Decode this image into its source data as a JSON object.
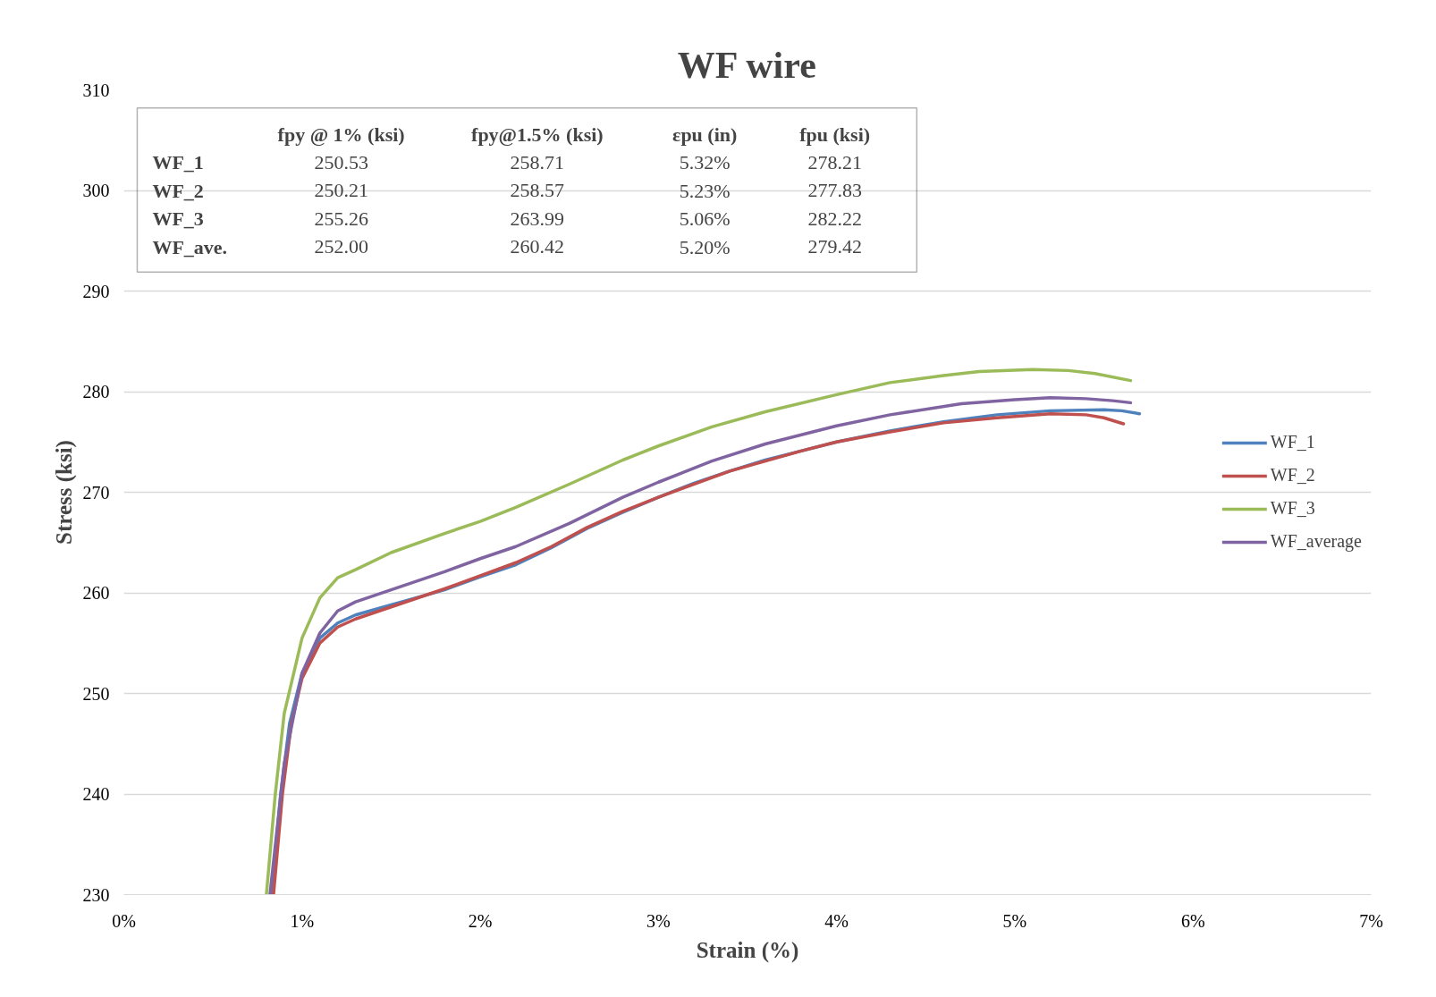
{
  "chart_data": {
    "type": "line",
    "title": "WF wire",
    "xlabel": "Strain (%)",
    "ylabel": "Stress (ksi)",
    "xlim": [
      0,
      7
    ],
    "ylim": [
      230,
      310
    ],
    "xticks": [
      {
        "value": 0,
        "label": "0%"
      },
      {
        "value": 1,
        "label": "1%"
      },
      {
        "value": 2,
        "label": "2%"
      },
      {
        "value": 3,
        "label": "3%"
      },
      {
        "value": 4,
        "label": "4%"
      },
      {
        "value": 5,
        "label": "5%"
      },
      {
        "value": 6,
        "label": "6%"
      },
      {
        "value": 7,
        "label": "7%"
      }
    ],
    "yticks": [
      230,
      240,
      250,
      260,
      270,
      280,
      290,
      300,
      310
    ],
    "grid": "y",
    "legend": "right",
    "marker": "none",
    "line_style": "solid",
    "annotations": [
      "fpy @ 1% (ksi)",
      "fpy@1.5% (ksi)",
      "εpu (in)",
      "fpu (ksi)",
      "WF_1",
      "250.53",
      "258.71",
      "5.32%",
      "278.21",
      "WF_2",
      "250.21",
      "258.57",
      "5.23%",
      "277.83",
      "WF_3",
      "255.26",
      "263.99",
      "5.06%",
      "282.22",
      "WF_ave.",
      "252.00",
      "260.42",
      "5.20%",
      "279.42"
    ],
    "series": [
      {
        "name": "WF_1",
        "color": "#4f81bd",
        "x": [
          0.83,
          0.88,
          0.93,
          1.0,
          1.1,
          1.2,
          1.3,
          1.5,
          1.8,
          2.0,
          2.2,
          2.4,
          2.6,
          2.8,
          3.0,
          3.2,
          3.4,
          3.6,
          3.8,
          4.0,
          4.3,
          4.6,
          4.9,
          5.2,
          5.5,
          5.6,
          5.7
        ],
        "values": [
          230,
          240,
          247,
          252,
          255.5,
          257,
          257.8,
          258.8,
          260.3,
          261.6,
          262.8,
          264.5,
          266.4,
          268,
          269.5,
          270.9,
          272.1,
          273.2,
          274.1,
          275,
          276.1,
          277,
          277.7,
          278.1,
          278.2,
          278.1,
          277.8
        ]
      },
      {
        "name": "WF_2",
        "color": "#c0504d",
        "x": [
          0.84,
          0.89,
          0.94,
          1.0,
          1.1,
          1.2,
          1.3,
          1.5,
          1.8,
          2.0,
          2.2,
          2.4,
          2.6,
          2.8,
          3.0,
          3.4,
          3.8,
          4.0,
          4.3,
          4.6,
          4.9,
          5.2,
          5.4,
          5.5,
          5.61
        ],
        "values": [
          230,
          240,
          247,
          251.5,
          255,
          256.6,
          257.4,
          258.6,
          260.4,
          261.7,
          263,
          264.6,
          266.5,
          268.1,
          269.5,
          272.1,
          274.1,
          275,
          276,
          276.9,
          277.4,
          277.8,
          277.7,
          277.4,
          276.8
        ]
      },
      {
        "name": "WF_3",
        "color": "#9bbb59",
        "x": [
          0.8,
          0.85,
          0.9,
          1.0,
          1.1,
          1.2,
          1.3,
          1.5,
          1.8,
          2.0,
          2.2,
          2.5,
          2.8,
          3.0,
          3.3,
          3.6,
          4.0,
          4.3,
          4.6,
          4.8,
          5.1,
          5.3,
          5.45,
          5.65
        ],
        "values": [
          230,
          240,
          248,
          255.5,
          259.5,
          261.5,
          262.3,
          264,
          265.9,
          267.1,
          268.5,
          270.8,
          273.2,
          274.6,
          276.5,
          278,
          279.7,
          280.9,
          281.6,
          282,
          282.2,
          282.1,
          281.8,
          281.1
        ]
      },
      {
        "name": "WF_average",
        "color": "#8064a2",
        "x": [
          0.82,
          0.9,
          1.0,
          1.1,
          1.2,
          1.3,
          1.5,
          1.8,
          2.0,
          2.2,
          2.5,
          2.8,
          3.0,
          3.3,
          3.6,
          4.0,
          4.3,
          4.7,
          5.0,
          5.2,
          5.4,
          5.55,
          5.65
        ],
        "values": [
          230,
          243,
          252,
          256,
          258.2,
          259.1,
          260.3,
          262.1,
          263.4,
          264.6,
          266.9,
          269.5,
          271,
          273.1,
          274.8,
          276.6,
          277.7,
          278.8,
          279.2,
          279.4,
          279.3,
          279.1,
          278.9
        ]
      }
    ]
  }
}
